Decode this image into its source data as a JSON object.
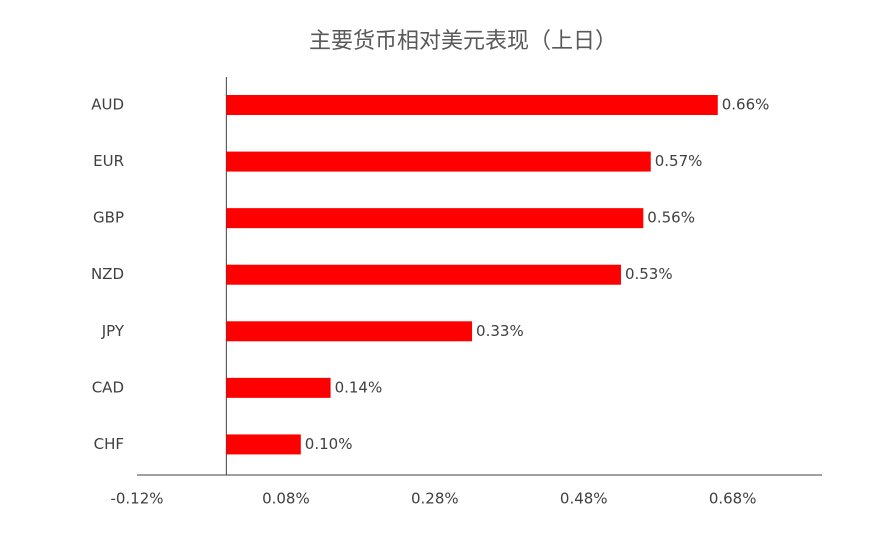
{
  "chart_data": {
    "type": "bar",
    "orientation": "horizontal",
    "title": "主要货币相对美元表现（上日）",
    "categories": [
      "AUD",
      "EUR",
      "GBP",
      "NZD",
      "JPY",
      "CAD",
      "CHF"
    ],
    "values": [
      0.66,
      0.57,
      0.56,
      0.53,
      0.33,
      0.14,
      0.1
    ],
    "value_labels": [
      "0.66%",
      "0.57%",
      "0.56%",
      "0.53%",
      "0.33%",
      "0.14%",
      "0.10%"
    ],
    "color": "#ff0000",
    "xlim": [
      -0.12,
      0.8
    ],
    "xticks": [
      {
        "value": -0.12,
        "label": "-0.12%"
      },
      {
        "value": 0.08,
        "label": "0.08%"
      },
      {
        "value": 0.28,
        "label": "0.28%"
      },
      {
        "value": 0.48,
        "label": "0.48%"
      },
      {
        "value": 0.68,
        "label": "0.68%"
      }
    ],
    "grid": false
  }
}
